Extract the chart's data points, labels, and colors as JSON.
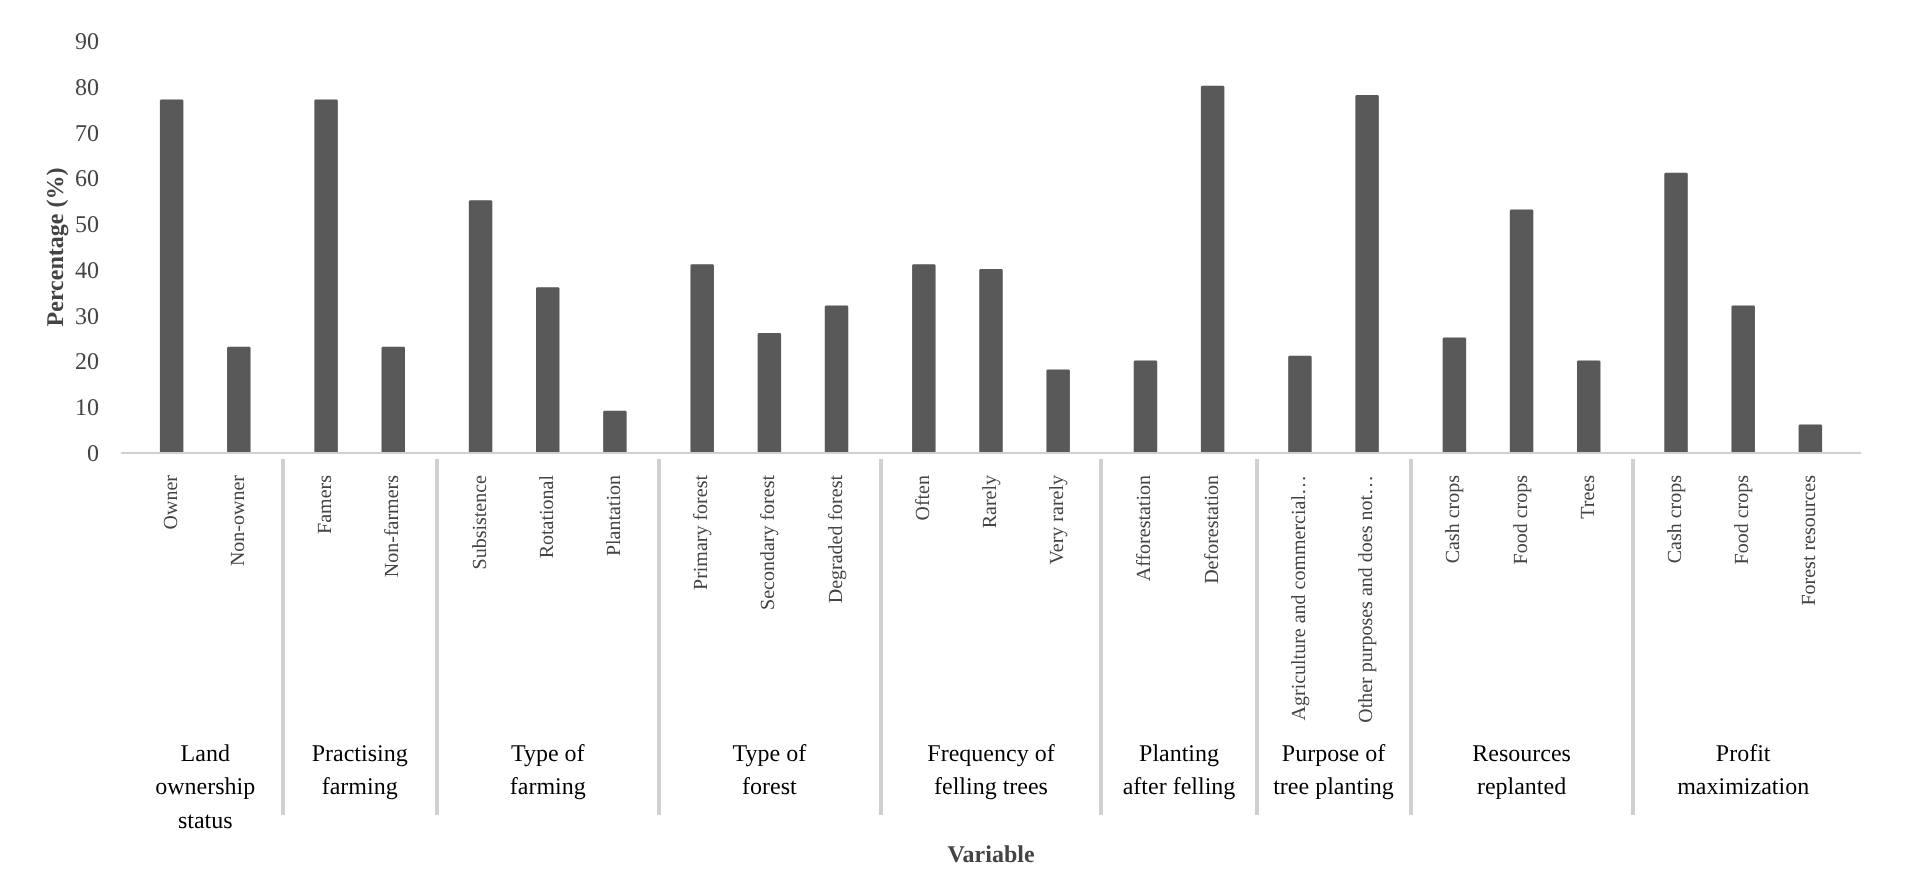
{
  "chart_data": {
    "type": "bar",
    "xlabel": "Variable",
    "ylabel": "Percentage (%)",
    "categories": [
      "Owner",
      "Non-owner",
      "Famers",
      "Non-farmers",
      "Subsistence",
      "Rotational",
      "Plantation",
      "Primary forest",
      "Secondary forest",
      "Degraded forest",
      "Often",
      "Rarely",
      "Very rarely",
      "Afforestation",
      "Deforestation",
      "Agriculture and commercial…",
      "Other purposes and does not…",
      "Cash crops",
      "Food crops",
      "Trees",
      "Cash crops",
      "Food crops",
      "Forest resources"
    ],
    "values": [
      77,
      23,
      77,
      23,
      55,
      36,
      9,
      41,
      26,
      32,
      41,
      40,
      18,
      20,
      80,
      21,
      78,
      25,
      53,
      20,
      61,
      32,
      6
    ],
    "annotations": [
      "Land ownership status",
      "Practising farming",
      "Type of farming",
      "Type of forest",
      "Frequency of felling trees",
      "Planting after felling",
      "Purpose of tree planting",
      "Resources replanted",
      "Profit maximization"
    ],
    "color": "#595959",
    "ylim": [
      0,
      90
    ],
    "yticks": [
      0,
      10,
      20,
      30,
      40,
      50,
      60,
      70,
      80,
      90
    ],
    "grid": false
  }
}
